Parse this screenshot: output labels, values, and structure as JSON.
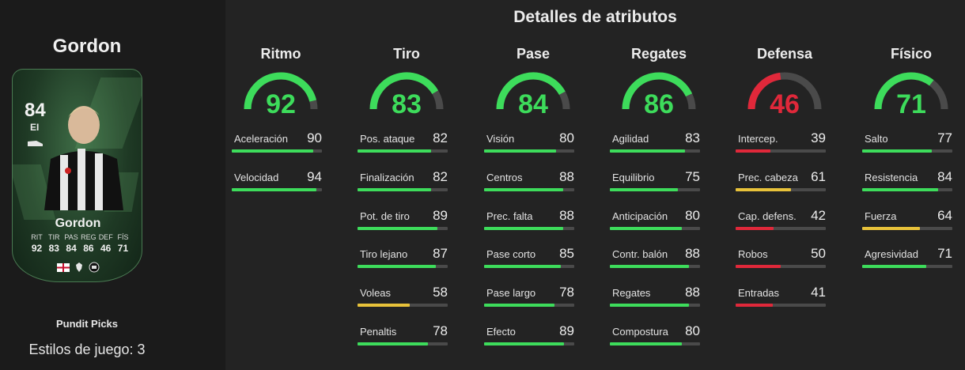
{
  "player": {
    "name": "Gordon",
    "edition": "Pundit Picks",
    "playstyles_label": "Estilos de juego: 3"
  },
  "card": {
    "rating": "84",
    "position": "EI",
    "name": "Gordon",
    "stats": [
      {
        "label": "RIT",
        "value": "92"
      },
      {
        "label": "TIR",
        "value": "83"
      },
      {
        "label": "PAS",
        "value": "84"
      },
      {
        "label": "REG",
        "value": "86"
      },
      {
        "label": "DEF",
        "value": "46"
      },
      {
        "label": "FÍS",
        "value": "71"
      }
    ]
  },
  "title": "Detalles de atributos",
  "colors": {
    "green": "#3ddc5b",
    "yellow": "#e8c23a",
    "red": "#e0283a",
    "track": "#4a4a4a"
  },
  "categories": [
    {
      "name": "Ritmo",
      "value": 92,
      "color": "green",
      "stats": [
        {
          "label": "Aceleración",
          "value": 90,
          "color": "green"
        },
        {
          "label": "Velocidad",
          "value": 94,
          "color": "green"
        }
      ]
    },
    {
      "name": "Tiro",
      "value": 83,
      "color": "green",
      "stats": [
        {
          "label": "Pos. ataque",
          "value": 82,
          "color": "green"
        },
        {
          "label": "Finalización",
          "value": 82,
          "color": "green"
        },
        {
          "label": "Pot. de tiro",
          "value": 89,
          "color": "green"
        },
        {
          "label": "Tiro lejano",
          "value": 87,
          "color": "green"
        },
        {
          "label": "Voleas",
          "value": 58,
          "color": "yellow"
        },
        {
          "label": "Penaltis",
          "value": 78,
          "color": "green"
        }
      ]
    },
    {
      "name": "Pase",
      "value": 84,
      "color": "green",
      "stats": [
        {
          "label": "Visión",
          "value": 80,
          "color": "green"
        },
        {
          "label": "Centros",
          "value": 88,
          "color": "green"
        },
        {
          "label": "Prec. falta",
          "value": 88,
          "color": "green"
        },
        {
          "label": "Pase corto",
          "value": 85,
          "color": "green"
        },
        {
          "label": "Pase largo",
          "value": 78,
          "color": "green"
        },
        {
          "label": "Efecto",
          "value": 89,
          "color": "green"
        }
      ]
    },
    {
      "name": "Regates",
      "value": 86,
      "color": "green",
      "stats": [
        {
          "label": "Agilidad",
          "value": 83,
          "color": "green"
        },
        {
          "label": "Equilibrio",
          "value": 75,
          "color": "green"
        },
        {
          "label": "Anticipación",
          "value": 80,
          "color": "green"
        },
        {
          "label": "Contr. balón",
          "value": 88,
          "color": "green"
        },
        {
          "label": "Regates",
          "value": 88,
          "color": "green"
        },
        {
          "label": "Compostura",
          "value": 80,
          "color": "green"
        }
      ]
    },
    {
      "name": "Defensa",
      "value": 46,
      "color": "red",
      "stats": [
        {
          "label": "Intercep.",
          "value": 39,
          "color": "red"
        },
        {
          "label": "Prec. cabeza",
          "value": 61,
          "color": "yellow"
        },
        {
          "label": "Cap. defens.",
          "value": 42,
          "color": "red"
        },
        {
          "label": "Robos",
          "value": 50,
          "color": "red"
        },
        {
          "label": "Entradas",
          "value": 41,
          "color": "red"
        }
      ]
    },
    {
      "name": "Físico",
      "value": 71,
      "color": "green",
      "stats": [
        {
          "label": "Salto",
          "value": 77,
          "color": "green"
        },
        {
          "label": "Resistencia",
          "value": 84,
          "color": "green"
        },
        {
          "label": "Fuerza",
          "value": 64,
          "color": "yellow"
        },
        {
          "label": "Agresividad",
          "value": 71,
          "color": "green"
        }
      ]
    }
  ]
}
